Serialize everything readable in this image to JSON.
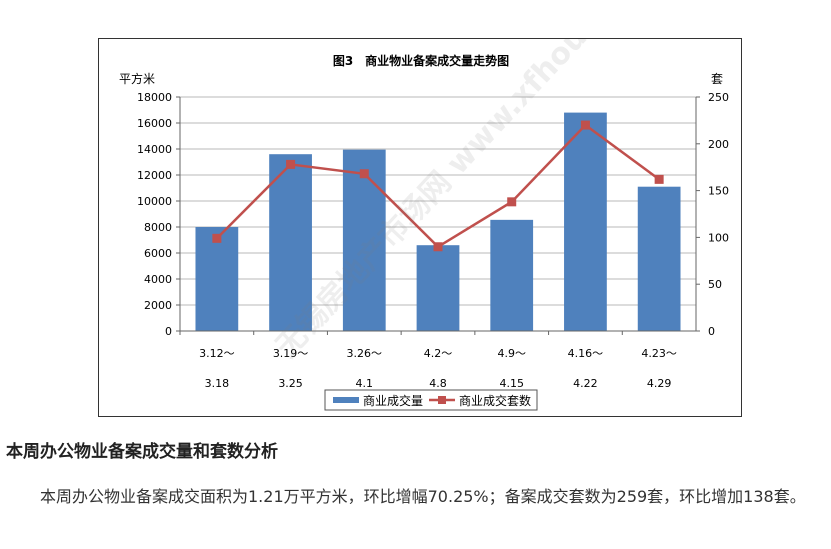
{
  "chart_data": {
    "type": "bar",
    "title": "图3　商业物业备案成交量走势图",
    "y_left_label": "平方米",
    "y_right_label": "套",
    "y_left_ticks": [
      "0",
      "2000",
      "4000",
      "6000",
      "8000",
      "10000",
      "12000",
      "14000",
      "16000",
      "18000"
    ],
    "y_right_ticks": [
      "0",
      "50",
      "100",
      "150",
      "200",
      "250"
    ],
    "y_left_range": [
      0,
      18000
    ],
    "y_right_range": [
      0,
      250
    ],
    "categories": [
      {
        "line1": "3.12～",
        "line2": "3.18"
      },
      {
        "line1": "3.19～",
        "line2": "3.25"
      },
      {
        "line1": "3.26～",
        "line2": "4.1"
      },
      {
        "line1": "4.2～",
        "line2": "4.8"
      },
      {
        "line1": "4.9～",
        "line2": "4.15"
      },
      {
        "line1": "4.16～",
        "line2": "4.22"
      },
      {
        "line1": "4.23～",
        "line2": "4.29"
      }
    ],
    "series": [
      {
        "name": "商业成交量",
        "type": "bar",
        "axis": "left",
        "color": "#4f81bd",
        "values": [
          8000,
          13600,
          13950,
          6600,
          8550,
          16800,
          11100
        ]
      },
      {
        "name": "商业成交套数",
        "type": "line",
        "axis": "right",
        "color": "#c0504d",
        "values": [
          99,
          178,
          168,
          90,
          138,
          220,
          162
        ]
      }
    ],
    "grid": true,
    "legend": "bottom",
    "watermark": "无锡房地产市场网 www.xfhouse.com"
  },
  "article": {
    "heading": "本周办公物业备案成交量和套数分析",
    "paragraph": "本周办公物业备案成交面积为1.21万平方米，环比增幅70.25%；备案成交套数为259套，环比增加138套。"
  }
}
